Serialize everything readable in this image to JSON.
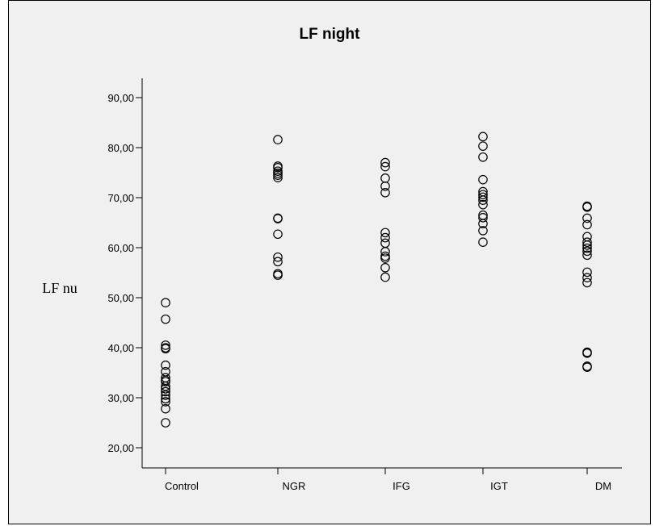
{
  "chart_data": {
    "type": "scatter",
    "title": "LF night",
    "xlabel": "",
    "ylabel": "LF nu",
    "categories": [
      "Control",
      "NGR",
      "IFG",
      "IGT",
      "DM"
    ],
    "ylim": [
      17,
      97
    ],
    "y_ticks": [
      20,
      30,
      40,
      50,
      60,
      70,
      80,
      90
    ],
    "y_tick_labels": [
      "20,00",
      "30,00",
      "40,00",
      "50,00",
      "60,00",
      "70,00",
      "80,00",
      "90,00"
    ],
    "grid": false,
    "legend": "none",
    "marker": "open-circle",
    "series": [
      {
        "category": "Control",
        "values": [
          49.0,
          45.7,
          40.5,
          40.0,
          39.8,
          36.5,
          35.2,
          34.0,
          33.5,
          33.2,
          32.3,
          31.8,
          31.2,
          30.5,
          29.8,
          29.2,
          27.8,
          25.0
        ]
      },
      {
        "category": "NGR",
        "values": [
          81.6,
          76.3,
          76.0,
          75.3,
          74.9,
          74.5,
          74.0,
          65.9,
          65.8,
          62.7,
          58.1,
          57.2,
          54.8,
          54.5
        ]
      },
      {
        "category": "IFG",
        "values": [
          77.0,
          76.2,
          73.9,
          72.3,
          71.0,
          63.0,
          62.0,
          60.9,
          59.2,
          58.3,
          57.9,
          56.0,
          54.1
        ]
      },
      {
        "category": "IGT",
        "values": [
          82.2,
          80.3,
          78.1,
          73.6,
          71.2,
          70.6,
          70.1,
          69.5,
          68.6,
          66.5,
          66.0,
          64.8,
          63.4,
          61.1
        ]
      },
      {
        "category": "DM",
        "values": [
          68.3,
          68.1,
          65.9,
          64.6,
          62.2,
          61.1,
          60.5,
          59.9,
          59.3,
          58.5,
          55.1,
          54.0,
          53.0,
          39.1,
          38.9,
          36.3,
          36.1
        ]
      }
    ]
  }
}
